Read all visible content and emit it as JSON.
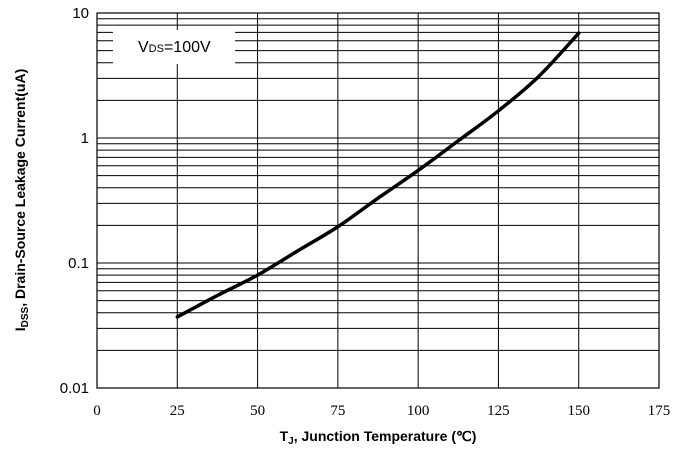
{
  "chart_data": {
    "type": "line",
    "title": "",
    "xlabel": {
      "main": "T",
      "sub": "J",
      "rest": ", Junction Temperature (℃)"
    },
    "ylabel": {
      "main": "I",
      "sub": "DSS",
      "rest": ", Drain-Source Leakage Current(uA)"
    },
    "xlim": [
      0,
      175
    ],
    "ylim": [
      0.01,
      10
    ],
    "yscale": "log",
    "x_ticks": [
      "0",
      "25",
      "50",
      "75",
      "100",
      "125",
      "150",
      "175"
    ],
    "y_ticks": [
      "0.01",
      "0.1",
      "1",
      "10"
    ],
    "grid": true,
    "annotation": {
      "main": "V",
      "sub": "DS",
      "rest": "=100V"
    },
    "series": [
      {
        "x": [
          25,
          37.5,
          50,
          62.5,
          75,
          87.5,
          100,
          112.5,
          125,
          137.5,
          150
        ],
        "y": [
          0.037,
          0.055,
          0.08,
          0.125,
          0.195,
          0.33,
          0.55,
          0.95,
          1.65,
          3.1,
          6.9
        ],
        "color": "#000000"
      }
    ]
  }
}
